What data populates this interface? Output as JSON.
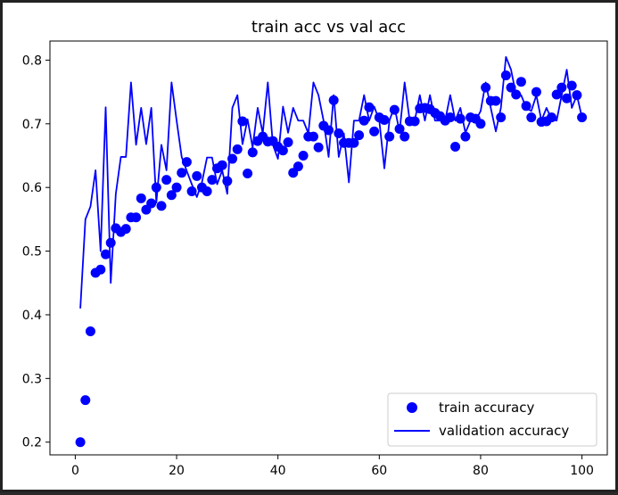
{
  "chart_data": {
    "type": "scatter",
    "title": "train acc vs val acc",
    "xlabel": "",
    "ylabel": "",
    "xlim": [
      -5,
      105
    ],
    "ylim": [
      0.18,
      0.83
    ],
    "x_ticks": [
      0,
      20,
      40,
      60,
      80,
      100
    ],
    "y_ticks": [
      0.2,
      0.3,
      0.4,
      0.5,
      0.6,
      0.7,
      0.8
    ],
    "grid": false,
    "legend_position": "lower-right",
    "colors": {
      "series": "#0000ff",
      "axes": "#000000",
      "background": "#ffffff"
    },
    "series": [
      {
        "name": "train accuracy",
        "kind": "scatter",
        "x": [
          1,
          2,
          3,
          4,
          5,
          6,
          7,
          8,
          9,
          10,
          11,
          12,
          13,
          14,
          15,
          16,
          17,
          18,
          19,
          20,
          21,
          22,
          23,
          24,
          25,
          26,
          27,
          28,
          29,
          30,
          31,
          32,
          33,
          34,
          35,
          36,
          37,
          38,
          39,
          40,
          41,
          42,
          43,
          44,
          45,
          46,
          47,
          48,
          49,
          50,
          51,
          52,
          53,
          54,
          55,
          56,
          57,
          58,
          59,
          60,
          61,
          62,
          63,
          64,
          65,
          66,
          67,
          68,
          69,
          70,
          71,
          72,
          73,
          74,
          75,
          76,
          77,
          78,
          79,
          80,
          81,
          82,
          83,
          84,
          85,
          86,
          87,
          88,
          89,
          90,
          91,
          92,
          93,
          94,
          95,
          96,
          97,
          98,
          99,
          100
        ],
        "values": [
          0.2,
          0.266,
          0.374,
          0.466,
          0.471,
          0.495,
          0.513,
          0.536,
          0.53,
          0.535,
          0.553,
          0.553,
          0.583,
          0.565,
          0.575,
          0.6,
          0.571,
          0.612,
          0.588,
          0.6,
          0.623,
          0.64,
          0.594,
          0.618,
          0.6,
          0.594,
          0.612,
          0.63,
          0.635,
          0.61,
          0.645,
          0.66,
          0.704,
          0.622,
          0.655,
          0.673,
          0.68,
          0.672,
          0.673,
          0.664,
          0.658,
          0.671,
          0.623,
          0.633,
          0.65,
          0.68,
          0.68,
          0.663,
          0.697,
          0.69,
          0.737,
          0.685,
          0.67,
          0.67,
          0.67,
          0.682,
          0.705,
          0.726,
          0.688,
          0.71,
          0.706,
          0.68,
          0.722,
          0.692,
          0.68,
          0.704,
          0.704,
          0.724,
          0.725,
          0.723,
          0.717,
          0.712,
          0.705,
          0.71,
          0.664,
          0.708,
          0.68,
          0.71,
          0.708,
          0.7,
          0.757,
          0.736,
          0.736,
          0.71,
          0.776,
          0.757,
          0.746,
          0.766,
          0.728,
          0.71,
          0.75,
          0.703,
          0.704,
          0.71,
          0.746,
          0.757,
          0.74,
          0.76,
          0.745,
          0.71
        ]
      },
      {
        "name": "validation accuracy",
        "kind": "line",
        "x": [
          1,
          2,
          3,
          4,
          5,
          6,
          7,
          8,
          9,
          10,
          11,
          12,
          13,
          14,
          15,
          16,
          17,
          18,
          19,
          20,
          21,
          22,
          23,
          24,
          25,
          26,
          27,
          28,
          29,
          30,
          31,
          32,
          33,
          34,
          35,
          36,
          37,
          38,
          39,
          40,
          41,
          42,
          43,
          44,
          45,
          46,
          47,
          48,
          49,
          50,
          51,
          52,
          53,
          54,
          55,
          56,
          57,
          58,
          59,
          60,
          61,
          62,
          63,
          64,
          65,
          66,
          67,
          68,
          69,
          70,
          71,
          72,
          73,
          74,
          75,
          76,
          77,
          78,
          79,
          80,
          81,
          82,
          83,
          84,
          85,
          86,
          87,
          88,
          89,
          90,
          91,
          92,
          93,
          94,
          95,
          96,
          97,
          98,
          99,
          100
        ],
        "values": [
          0.41,
          0.55,
          0.57,
          0.627,
          0.5,
          0.726,
          0.45,
          0.59,
          0.648,
          0.648,
          0.765,
          0.667,
          0.725,
          0.668,
          0.725,
          0.576,
          0.667,
          0.627,
          0.765,
          0.705,
          0.648,
          0.626,
          0.605,
          0.585,
          0.608,
          0.647,
          0.647,
          0.605,
          0.627,
          0.59,
          0.725,
          0.745,
          0.668,
          0.707,
          0.663,
          0.725,
          0.685,
          0.765,
          0.667,
          0.645,
          0.727,
          0.686,
          0.725,
          0.705,
          0.705,
          0.685,
          0.765,
          0.745,
          0.705,
          0.648,
          0.745,
          0.648,
          0.685,
          0.608,
          0.705,
          0.705,
          0.745,
          0.705,
          0.727,
          0.705,
          0.63,
          0.705,
          0.727,
          0.687,
          0.765,
          0.705,
          0.705,
          0.745,
          0.705,
          0.745,
          0.705,
          0.705,
          0.705,
          0.745,
          0.705,
          0.725,
          0.686,
          0.705,
          0.705,
          0.72,
          0.765,
          0.725,
          0.688,
          0.725,
          0.805,
          0.785,
          0.745,
          0.745,
          0.725,
          0.72,
          0.745,
          0.705,
          0.725,
          0.707,
          0.705,
          0.745,
          0.785,
          0.725,
          0.745,
          0.71
        ]
      }
    ]
  }
}
